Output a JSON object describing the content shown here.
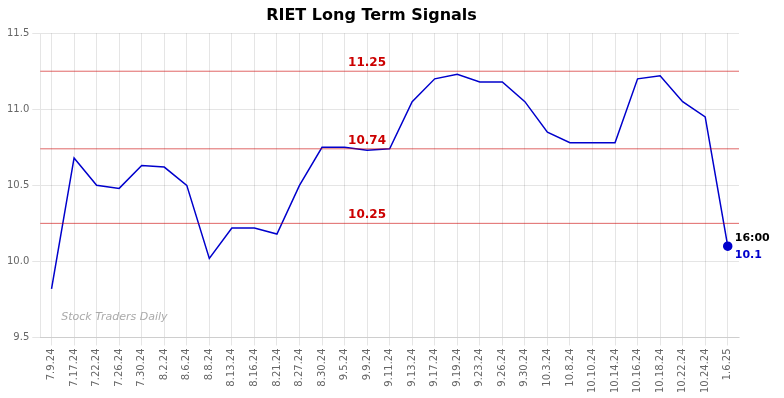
{
  "chart_data": {
    "type": "line",
    "title": "RIET Long Term Signals",
    "categories": [
      "7.9.24",
      "7.17.24",
      "7.22.24",
      "7.26.24",
      "7.30.24",
      "8.2.24",
      "8.6.24",
      "8.8.24",
      "8.13.24",
      "8.16.24",
      "8.21.24",
      "8.27.24",
      "8.30.24",
      "9.5.24",
      "9.9.24",
      "9.11.24",
      "9.13.24",
      "9.17.24",
      "9.19.24",
      "9.23.24",
      "9.26.24",
      "9.30.24",
      "10.3.24",
      "10.8.24",
      "10.10.24",
      "10.14.24",
      "10.16.24",
      "10.18.24",
      "10.22.24",
      "10.24.24",
      "1.6.25"
    ],
    "values": [
      9.82,
      10.68,
      10.5,
      10.48,
      10.63,
      10.62,
      10.5,
      10.02,
      10.22,
      10.22,
      10.18,
      10.5,
      10.75,
      10.75,
      10.73,
      10.74,
      11.05,
      11.2,
      11.23,
      11.18,
      11.18,
      11.05,
      10.85,
      10.78,
      10.78,
      10.78,
      11.2,
      11.22,
      11.05,
      10.95,
      10.1
    ],
    "color": "#0000cc",
    "ylim": [
      9.5,
      11.5
    ],
    "yticks": [
      9.5,
      {
        "value": 10,
        "label": "10.0"
      },
      10.5,
      {
        "value": 11,
        "label": "11.0"
      },
      11.5
    ],
    "grid": true,
    "hlines": [
      {
        "y": 11.25,
        "label": "11.25",
        "color": "#cc0000",
        "x": "9.9.24"
      },
      {
        "y": 10.74,
        "label": "10.74",
        "color": "#cc0000",
        "x": "9.9.24"
      },
      {
        "y": 10.25,
        "label": "10.25",
        "color": "#cc0000",
        "x": "9.9.24"
      }
    ],
    "annotations": [
      {
        "text": "16:00",
        "x": "1.6.25",
        "y": 10.1,
        "color": "#000000"
      },
      {
        "text": "10.1",
        "x": "1.6.25",
        "y": 10.1,
        "color": "#0000cc"
      }
    ],
    "watermark": "Stock Traders Daily"
  }
}
